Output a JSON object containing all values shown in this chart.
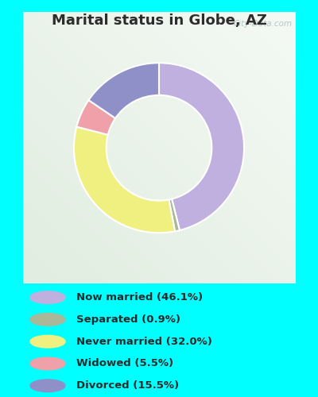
{
  "title": "Marital status in Globe, AZ",
  "title_color": "#2d2d2d",
  "title_fontsize": 13,
  "outer_bg": "#00ffff",
  "slices": [
    {
      "label": "Now married (46.1%)",
      "value": 46.1,
      "color": "#c0b0e0"
    },
    {
      "label": "Separated (0.9%)",
      "value": 0.9,
      "color": "#a8b898"
    },
    {
      "label": "Never married (32.0%)",
      "value": 32.0,
      "color": "#f0f080"
    },
    {
      "label": "Widowed (5.5%)",
      "value": 5.5,
      "color": "#f0a0a8"
    },
    {
      "label": "Divorced (15.5%)",
      "value": 15.5,
      "color": "#9090c8"
    }
  ],
  "legend_colors": [
    "#c0b0e0",
    "#a8b898",
    "#f0f080",
    "#f0a0a8",
    "#9090c8"
  ],
  "legend_labels": [
    "Now married (46.1%)",
    "Separated (0.9%)",
    "Never married (32.0%)",
    "Widowed (5.5%)",
    "Divorced (15.5%)"
  ],
  "donut_width": 0.38,
  "figsize": [
    4.0,
    5.0
  ],
  "dpi": 100
}
